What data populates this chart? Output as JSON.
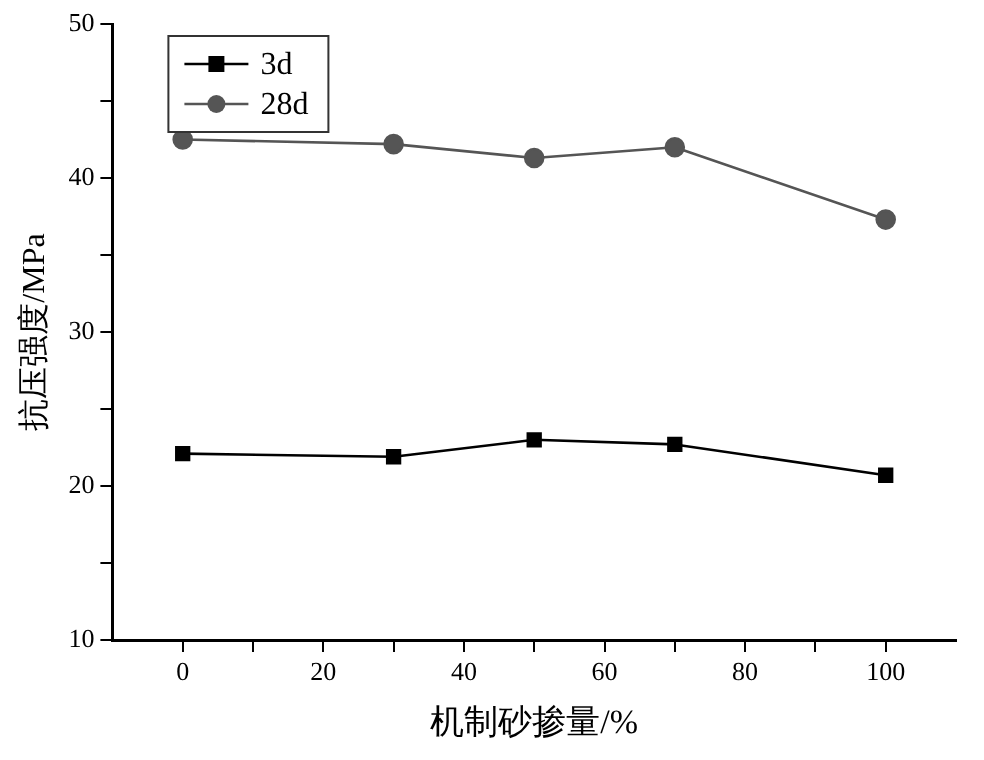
{
  "chart_data": {
    "type": "line",
    "xlabel": "机制砂掺量/%",
    "ylabel": "抗压强度/MPa",
    "x": [
      0,
      30,
      50,
      70,
      100
    ],
    "series": [
      {
        "name": "3d",
        "color": "#000000",
        "marker": "square",
        "values": [
          22.1,
          21.9,
          23.0,
          22.7,
          20.7
        ]
      },
      {
        "name": "28d",
        "color": "#555555",
        "marker": "circle",
        "values": [
          42.5,
          42.2,
          41.3,
          42.0,
          37.3
        ]
      }
    ],
    "xlim": [
      -10,
      110
    ],
    "xticks": [
      0,
      {
        "value": 10,
        "label": null
      },
      20,
      {
        "value": 30,
        "label": null
      },
      40,
      {
        "value": 50,
        "label": null
      },
      60,
      {
        "value": 70,
        "label": null
      },
      80,
      {
        "value": 90,
        "label": null
      },
      100
    ],
    "ylim": [
      10,
      50
    ],
    "yticks": [
      10,
      {
        "value": 15,
        "label": null
      },
      20,
      {
        "value": 25,
        "label": null
      },
      30,
      {
        "value": 35,
        "label": null
      },
      40,
      {
        "value": 45,
        "label": null
      },
      50
    ],
    "grid": false,
    "legend": "top left",
    "line_style": "solid"
  }
}
